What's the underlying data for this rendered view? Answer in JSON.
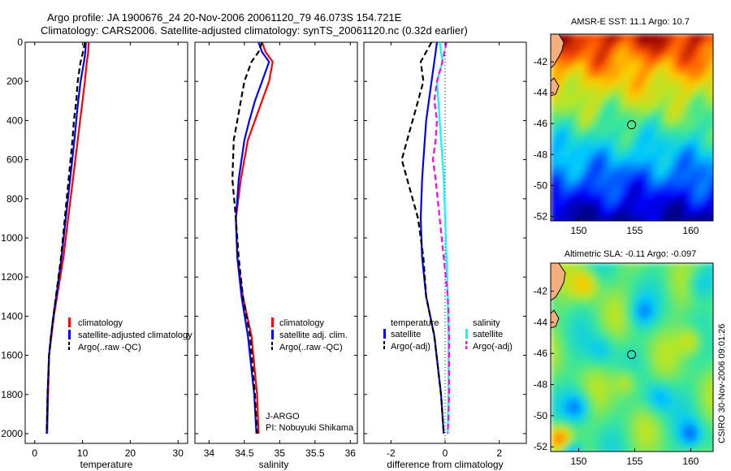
{
  "title_line1": "Argo profile: JA 1900676_24 20-Nov-2006 20061120_79 46.073S 154.721E",
  "title_line2": "Climatology: CARS2006. Satellite-adjusted climatology: synTS_20061120.nc (0.32d earlier)",
  "side_label": "CSIRO 30-Nov-2006 09:01:26",
  "colors": {
    "climatology": "#ff0000",
    "satellite": "#0000ff",
    "argo": "#000000",
    "satellite_salinity": "#00ffff",
    "argo_salinity": "#ff00ff"
  },
  "chart_data": [
    {
      "type": "line",
      "xlabel": "temperature",
      "ylabel": "",
      "xlim": [
        -2,
        32
      ],
      "ylim": [
        2050,
        0
      ],
      "y_reversed": true,
      "xticks": [
        0,
        10,
        20,
        30
      ],
      "yticks": [
        0,
        200,
        400,
        600,
        800,
        1000,
        1200,
        1400,
        1600,
        1800,
        2000
      ],
      "legend": [
        "climatology",
        "satellite-adjusted climatology",
        "Argo(..raw -QC)"
      ],
      "series": [
        {
          "name": "climatology",
          "color": "#ff0000",
          "style": "solid",
          "x": [
            11.3,
            11.2,
            10.9,
            10.5,
            10.0,
            9.5,
            9.0,
            8.0,
            7.0,
            6.0,
            5.0,
            4.0,
            3.5,
            3.0,
            2.8,
            2.6
          ],
          "y": [
            0,
            50,
            100,
            200,
            300,
            400,
            500,
            700,
            900,
            1100,
            1250,
            1400,
            1500,
            1600,
            1800,
            2000
          ]
        },
        {
          "name": "satellite-adjusted climatology",
          "color": "#0000ff",
          "style": "solid",
          "x": [
            10.7,
            10.6,
            10.3,
            9.6,
            9.1,
            8.7,
            8.3,
            7.4,
            6.5,
            5.6,
            4.8,
            3.9,
            3.4,
            3.0,
            2.7,
            2.5
          ],
          "y": [
            0,
            50,
            100,
            200,
            300,
            400,
            500,
            700,
            900,
            1100,
            1250,
            1400,
            1500,
            1600,
            1800,
            2000
          ]
        },
        {
          "name": "Argo(..raw -QC)",
          "color": "#000000",
          "style": "dashed",
          "x": [
            10.5,
            10.1,
            9.6,
            9.0,
            8.7,
            8.2,
            7.9,
            7.1,
            6.3,
            5.5,
            4.7,
            3.9,
            3.4,
            3.0,
            2.7,
            2.5
          ],
          "y": [
            0,
            50,
            100,
            200,
            300,
            400,
            500,
            700,
            900,
            1100,
            1250,
            1400,
            1500,
            1600,
            1800,
            2000
          ]
        }
      ]
    },
    {
      "type": "line",
      "xlabel": "salinity",
      "ylabel": "",
      "xlim": [
        33.8,
        36.1
      ],
      "ylim": [
        2050,
        0
      ],
      "y_reversed": true,
      "xticks": [
        34,
        34.5,
        35,
        35.5,
        36
      ],
      "legend": [
        "climatology",
        "satellite adj. clim.",
        "Argo(..raw -QC)"
      ],
      "annotation": [
        "J-ARGO",
        "PI: Nobuyuki Shikama"
      ],
      "series": [
        {
          "name": "climatology",
          "color": "#ff0000",
          "style": "solid",
          "x": [
            34.75,
            34.8,
            34.9,
            34.85,
            34.75,
            34.65,
            34.55,
            34.45,
            34.38,
            34.4,
            34.48,
            34.6,
            34.68,
            34.7
          ],
          "y": [
            0,
            50,
            100,
            200,
            300,
            400,
            500,
            700,
            900,
            1100,
            1300,
            1500,
            1800,
            2000
          ]
        },
        {
          "name": "satellite adj. clim.",
          "color": "#0000ff",
          "style": "solid",
          "x": [
            34.7,
            34.75,
            34.85,
            34.75,
            34.65,
            34.57,
            34.5,
            34.42,
            34.38,
            34.4,
            34.46,
            34.55,
            34.64,
            34.67
          ],
          "y": [
            0,
            50,
            100,
            200,
            300,
            400,
            500,
            700,
            900,
            1100,
            1300,
            1500,
            1800,
            2000
          ]
        },
        {
          "name": "Argo(..raw -QC)",
          "color": "#000000",
          "style": "dashed",
          "x": [
            34.75,
            34.7,
            34.6,
            34.5,
            34.45,
            34.4,
            34.35,
            34.33,
            34.38,
            34.42,
            34.48,
            34.58,
            34.65,
            34.68
          ],
          "y": [
            0,
            50,
            100,
            200,
            300,
            400,
            500,
            700,
            900,
            1100,
            1300,
            1500,
            1800,
            2000
          ]
        }
      ]
    },
    {
      "type": "line",
      "xlabel": "difference from climatology",
      "ylabel": "",
      "xlim": [
        -3,
        3
      ],
      "ylim": [
        2050,
        0
      ],
      "y_reversed": true,
      "xticks": [
        -2,
        0,
        2
      ],
      "legend_temperature_title": "temperature",
      "legend_salinity_title": "salinity",
      "legend_temperature": [
        "satellite",
        "Argo(-adj)"
      ],
      "legend_salinity": [
        "satellite",
        "Argo(-adj)"
      ],
      "series": [
        {
          "name": "temperature satellite",
          "color": "#0000ff",
          "style": "solid",
          "x": [
            -0.3,
            -0.4,
            -0.5,
            -0.6,
            -0.7,
            -0.75,
            -0.8,
            -0.85,
            -0.9,
            -0.85,
            -0.7,
            -0.4,
            -0.15,
            -0.05
          ],
          "y": [
            0,
            100,
            200,
            300,
            400,
            500,
            600,
            700,
            900,
            1100,
            1300,
            1500,
            1800,
            2000
          ]
        },
        {
          "name": "temperature Argo(-adj)",
          "color": "#000000",
          "style": "dashed",
          "x": [
            -0.5,
            -0.9,
            -0.8,
            -1.0,
            -1.2,
            -1.4,
            -1.6,
            -1.4,
            -1.0,
            -0.8,
            -0.7,
            -0.4,
            -0.15,
            -0.05
          ],
          "y": [
            0,
            100,
            200,
            300,
            400,
            500,
            600,
            700,
            900,
            1100,
            1300,
            1500,
            1800,
            2000
          ]
        },
        {
          "name": "salinity satellite",
          "color": "#00ffff",
          "style": "solid",
          "x": [
            -0.2,
            -0.1,
            -0.3,
            -0.25,
            -0.2,
            -0.15,
            -0.1,
            -0.05,
            0.0,
            0.05,
            0.1,
            0.12,
            0.12,
            0.1
          ],
          "y": [
            0,
            100,
            200,
            300,
            400,
            500,
            600,
            700,
            900,
            1100,
            1300,
            1500,
            1800,
            2000
          ]
        },
        {
          "name": "salinity Argo(-adj)",
          "color": "#ff00ff",
          "style": "dashed",
          "x": [
            0.05,
            -0.1,
            -0.3,
            -0.4,
            -0.3,
            -0.35,
            -0.45,
            -0.35,
            -0.2,
            -0.05,
            0.1,
            0.15,
            0.15,
            0.1
          ],
          "y": [
            0,
            100,
            200,
            300,
            400,
            500,
            600,
            700,
            900,
            1100,
            1300,
            1500,
            1800,
            2000
          ]
        }
      ]
    },
    {
      "type": "heatmap",
      "title": "AMSR-E SST: 11.1 Argo: 10.7",
      "xlim": [
        147.5,
        162
      ],
      "ylim": [
        -52.3,
        -40.2
      ],
      "xticks": [
        150,
        155,
        160
      ],
      "yticks": [
        -42,
        -44,
        -46,
        -48,
        -50,
        -52
      ],
      "marker": {
        "lon": 154.721,
        "lat": -46.073
      }
    },
    {
      "type": "heatmap",
      "title": "Altimetric SLA: -0.11 Argo: -0.097",
      "xlim": [
        147.5,
        162
      ],
      "ylim": [
        -52.3,
        -40.2
      ],
      "xticks": [
        150,
        155,
        160
      ],
      "yticks": [
        -42,
        -44,
        -46,
        -48,
        -50,
        -52
      ],
      "marker": {
        "lon": 154.721,
        "lat": -46.073
      }
    }
  ]
}
